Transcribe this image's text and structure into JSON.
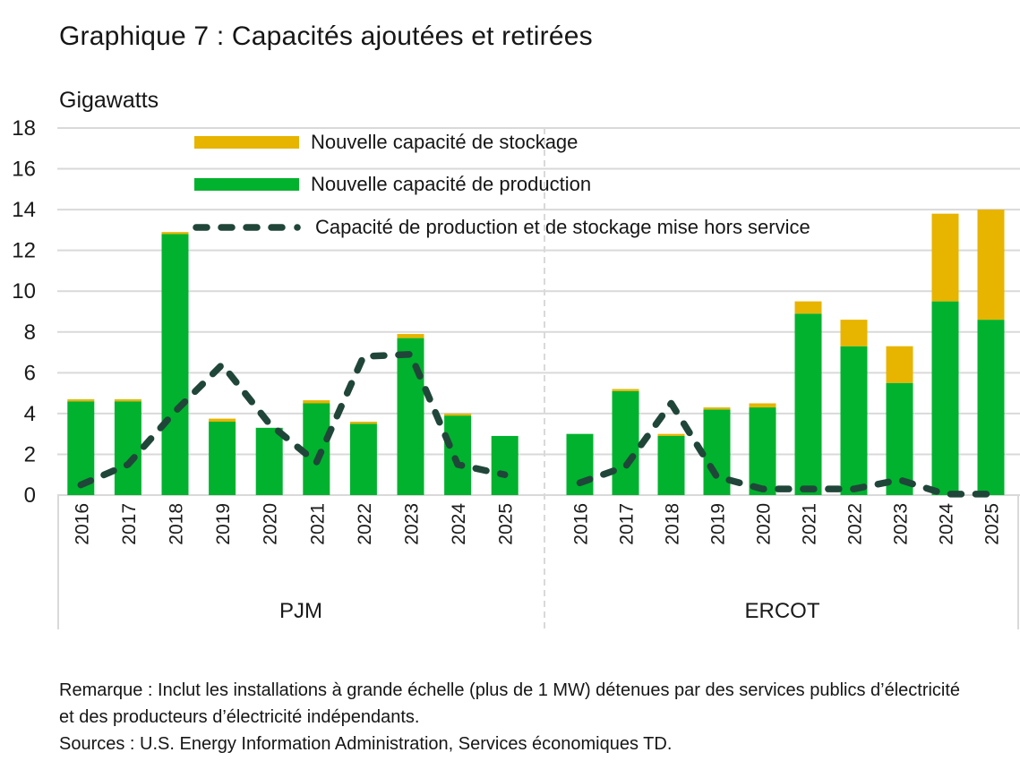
{
  "title": "Graphique 7 : Capacités ajoutées et retirées",
  "y_axis_unit": "Gigawatts",
  "legend": {
    "storage": "Nouvelle capacité de stockage",
    "production": "Nouvelle capacité de production",
    "retired": "Capacité de production et de stockage mise hors service"
  },
  "colors": {
    "production": "#00B22D",
    "storage": "#E7B400",
    "retired": "#204639",
    "grid": "#D9D9D9",
    "text": "#1A1A1A"
  },
  "footer": {
    "note": "Remarque : Inclut les installations à grande échelle (plus de 1 MW) détenues par des services publics d’électricité et des producteurs d’électricité indépendants.",
    "sources": "Sources : U.S. Energy Information Administration, Services économiques TD."
  },
  "chart_data": {
    "type": "bar",
    "stacked": true,
    "title": "Graphique 7 : Capacités ajoutées et retirées",
    "ylabel": "Gigawatts",
    "ylim": [
      0,
      18
    ],
    "ytick_step": 2,
    "grid": true,
    "legend_position": "top-left-inside",
    "categories": [
      "2016",
      "2017",
      "2018",
      "2019",
      "2020",
      "2021",
      "2022",
      "2023",
      "2024",
      "2025"
    ],
    "groups": [
      {
        "label": "PJM",
        "series": [
          {
            "name": "Nouvelle capacité de production",
            "kind": "bar",
            "color_key": "production",
            "values": [
              4.6,
              4.6,
              12.8,
              3.6,
              3.3,
              4.5,
              3.5,
              7.7,
              3.9,
              2.9
            ]
          },
          {
            "name": "Nouvelle capacité de stockage",
            "kind": "bar",
            "color_key": "storage",
            "values": [
              0.1,
              0.1,
              0.1,
              0.15,
              0,
              0.15,
              0.1,
              0.2,
              0.1,
              0
            ]
          },
          {
            "name": "Capacité de production et de stockage mise hors service",
            "kind": "dashed-line",
            "color_key": "retired",
            "values": [
              0.5,
              1.5,
              4.1,
              6.4,
              3.5,
              1.6,
              6.8,
              6.9,
              1.5,
              1.0
            ]
          }
        ]
      },
      {
        "label": "ERCOT",
        "series": [
          {
            "name": "Nouvelle capacité de production",
            "kind": "bar",
            "color_key": "production",
            "values": [
              3.0,
              5.1,
              2.9,
              4.2,
              4.3,
              8.9,
              7.3,
              5.5,
              9.5,
              8.6
            ]
          },
          {
            "name": "Nouvelle capacité de stockage",
            "kind": "bar",
            "color_key": "storage",
            "values": [
              0,
              0.1,
              0.1,
              0.1,
              0.2,
              0.6,
              1.3,
              1.8,
              4.3,
              5.4
            ]
          },
          {
            "name": "Capacité de production et de stockage mise hors service",
            "kind": "dashed-line",
            "color_key": "retired",
            "values": [
              0.6,
              1.4,
              4.5,
              0.9,
              0.3,
              0.3,
              0.3,
              0.75,
              0.05,
              0.05
            ]
          }
        ]
      }
    ]
  }
}
